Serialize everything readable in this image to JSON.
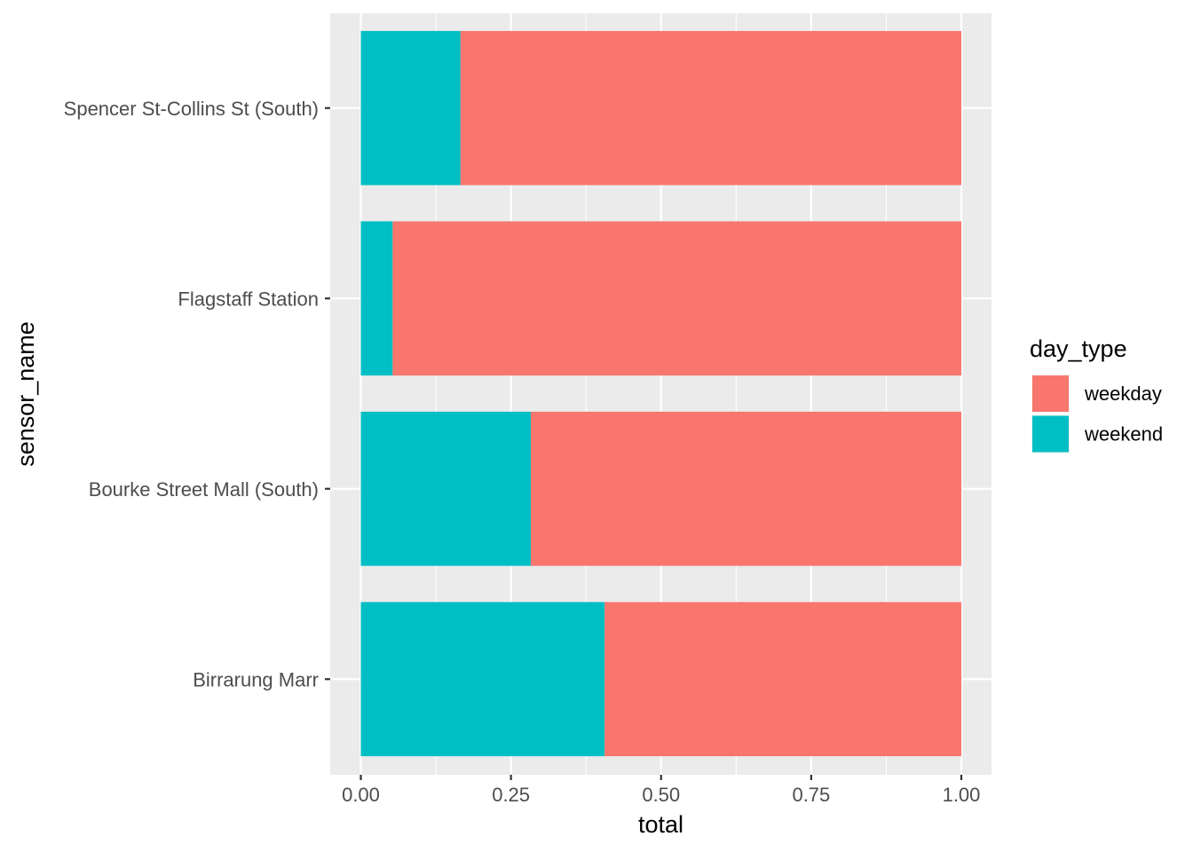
{
  "chart_data": {
    "type": "bar",
    "orientation": "horizontal",
    "stacked": true,
    "position": "fill",
    "categories": [
      "Birrarung Marr",
      "Bourke Street Mall (South)",
      "Flagstaff Station",
      "Spencer St-Collins St (South)"
    ],
    "series": [
      {
        "name": "weekend",
        "color": "#00BFC4",
        "values": [
          0.406,
          0.283,
          0.053,
          0.166
        ]
      },
      {
        "name": "weekday",
        "color": "#F8766D",
        "values": [
          0.594,
          0.717,
          0.947,
          0.834
        ]
      }
    ],
    "xlabel": "total",
    "ylabel": "sensor_name",
    "xlim": [
      0,
      1
    ],
    "xticks": [
      0.0,
      0.25,
      0.5,
      0.75,
      1.0
    ],
    "xtick_labels": [
      "0.00",
      "0.25",
      "0.50",
      "0.75",
      "1.00"
    ],
    "grid": true,
    "legend": {
      "title": "day_type",
      "placement": "right",
      "entries": [
        {
          "label": "weekday",
          "color": "#F8766D"
        },
        {
          "label": "weekend",
          "color": "#00BFC4"
        }
      ]
    },
    "panel_background": "#EBEBEB",
    "grid_color": "#FFFFFF"
  }
}
